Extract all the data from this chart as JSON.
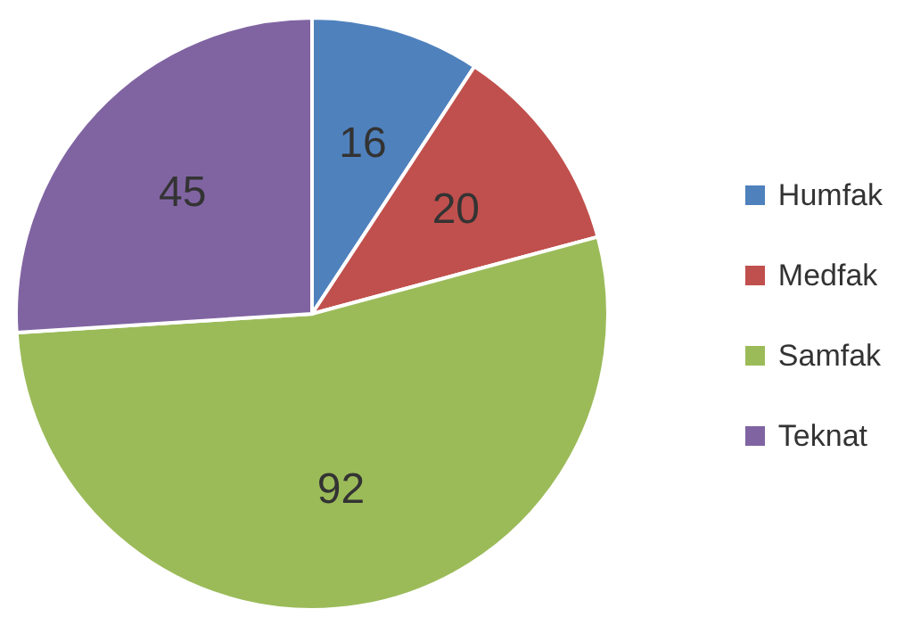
{
  "chart_data": {
    "type": "pie",
    "categories": [
      "Humfak",
      "Medfak",
      "Samfak",
      "Teknat"
    ],
    "values": [
      16,
      20,
      92,
      45
    ],
    "colors": [
      "#4f81bd",
      "#c0504d",
      "#9bbb59",
      "#8064a2"
    ],
    "data_labels": true,
    "legend": "right"
  }
}
